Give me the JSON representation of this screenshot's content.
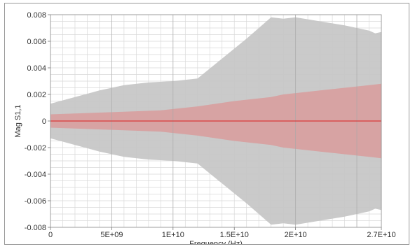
{
  "chart_data": {
    "type": "area",
    "xlabel": "Frequency (Hz)",
    "ylabel": "Mag S1,1",
    "xlim": [
      0,
      27000000000
    ],
    "ylim": [
      -0.008,
      0.008
    ],
    "x_ticks": [
      {
        "value": 0,
        "label": "0"
      },
      {
        "value": 5000000000,
        "label": "5E+09"
      },
      {
        "value": 10000000000,
        "label": "1E+10"
      },
      {
        "value": 15000000000,
        "label": "1.5E+10"
      },
      {
        "value": 20000000000,
        "label": "2E+10"
      },
      {
        "value": 27000000000,
        "label": "2.7E+10"
      }
    ],
    "y_ticks": [
      {
        "value": 0.008,
        "label": "0.008"
      },
      {
        "value": 0.006,
        "label": "0.006"
      },
      {
        "value": 0.004,
        "label": "0.004"
      },
      {
        "value": 0.002,
        "label": "0.002"
      },
      {
        "value": 0,
        "label": "0"
      },
      {
        "value": -0.002,
        "label": "-0.002"
      },
      {
        "value": -0.004,
        "label": "-0.004"
      },
      {
        "value": -0.006,
        "label": "-0.006"
      },
      {
        "value": -0.008,
        "label": "-0.008"
      }
    ],
    "grid": true,
    "colors": {
      "outer_band": "#c6c6c6",
      "inner_band": "#d8a0a0",
      "center_line": "#d83a3a",
      "grid_minor": "#d9d9d9",
      "grid_major": "#a8a8a8"
    },
    "outer_band": {
      "x": [
        0,
        2000000000,
        4000000000,
        6000000000,
        8000000000,
        10000000000,
        12000000000,
        14000000000,
        16000000000,
        18000000000,
        19000000000,
        20000000000,
        22000000000,
        24000000000,
        26000000000,
        26500000000,
        27000000000
      ],
      "upper": [
        0.0013,
        0.0018,
        0.0023,
        0.0027,
        0.0029,
        0.003,
        0.0032,
        0.0047,
        0.0062,
        0.0078,
        0.0077,
        0.0078,
        0.0075,
        0.0072,
        0.0068,
        0.0066,
        0.0067
      ],
      "lower": [
        -0.0013,
        -0.0018,
        -0.0023,
        -0.0027,
        -0.0029,
        -0.003,
        -0.0032,
        -0.0047,
        -0.0062,
        -0.0078,
        -0.0077,
        -0.0078,
        -0.0075,
        -0.0072,
        -0.0068,
        -0.0066,
        -0.0067
      ]
    },
    "inner_band": {
      "x": [
        0,
        3000000000,
        6000000000,
        9000000000,
        12000000000,
        15000000000,
        18000000000,
        19000000000,
        20000000000,
        22000000000,
        24000000000,
        26000000000,
        27000000000
      ],
      "upper": [
        0.0005,
        0.0006,
        0.0007,
        0.0008,
        0.0011,
        0.0015,
        0.0018,
        0.002,
        0.0021,
        0.0023,
        0.0025,
        0.0027,
        0.0028
      ],
      "lower": [
        -0.0005,
        -0.0006,
        -0.0007,
        -0.0008,
        -0.0011,
        -0.0015,
        -0.0018,
        -0.002,
        -0.0021,
        -0.0023,
        -0.0025,
        -0.0027,
        -0.0028
      ]
    },
    "center_line": {
      "x": [
        0,
        27000000000
      ],
      "y": [
        0,
        0
      ]
    }
  }
}
